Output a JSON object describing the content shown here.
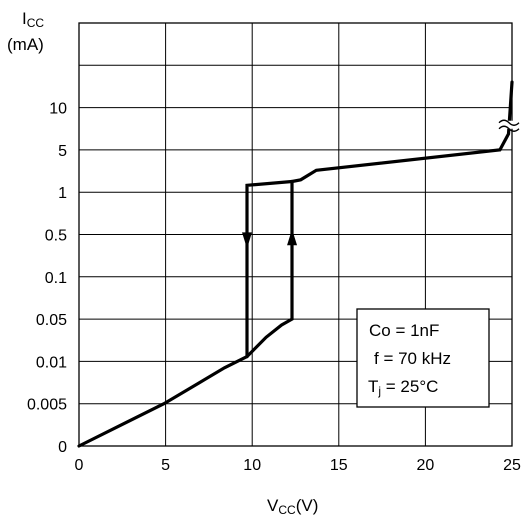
{
  "chart_data": {
    "type": "line",
    "ylabel": "I",
    "ylabel_sub": "CC",
    "yunit": "(mA)",
    "xlabel": "V",
    "xlabel_sub": "CC",
    "xunit": "(V)",
    "x_ticks": [
      "0",
      "5",
      "10",
      "15",
      "20",
      "25"
    ],
    "y_ticks": [
      "0",
      "0.005",
      "0.01",
      "0.05",
      "0.1",
      "0.5",
      "1",
      "5",
      "10"
    ],
    "xlim": [
      0,
      25
    ],
    "grid": true,
    "legend_box": {
      "line1": "Co = 1nF",
      "line2": "f = 70 kHz",
      "line3_main": "T",
      "line3_sub": "j",
      "line3_rest": " = 25°C"
    },
    "series": [
      {
        "points": [
          [
            0,
            0
          ],
          [
            4.9,
            0.005
          ],
          [
            6.9,
            0.007
          ],
          [
            8.4,
            0.009
          ],
          [
            9.7,
            0.012
          ],
          [
            10.8,
            0.025
          ],
          [
            11.7,
            0.04
          ],
          [
            12.3,
            0.05
          ],
          [
            12.3,
            1.5
          ],
          [
            12.8,
            1.6
          ],
          [
            13.7,
            2.3
          ],
          [
            24.3,
            5.0
          ],
          [
            24.8,
            6.5
          ],
          [
            25.0,
            20
          ]
        ],
        "arrow_up_at": [
          12.3,
          0.45
        ]
      },
      {
        "points": [
          [
            9.7,
            0.012
          ],
          [
            9.7,
            1.3
          ],
          [
            12.3,
            1.5
          ]
        ],
        "arrow_down_at": [
          9.7,
          0.4
        ]
      }
    ],
    "axis_break_at": [
      25,
      10
    ]
  }
}
